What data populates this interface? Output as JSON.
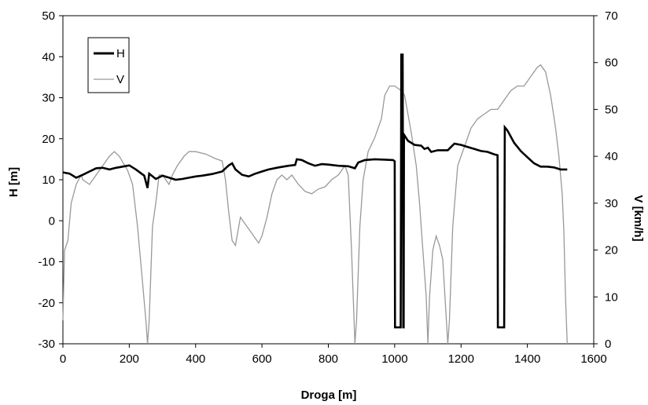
{
  "chart_data": {
    "type": "line",
    "xlabel": "Droga [m]",
    "ylabel_left": "H [m]",
    "ylabel_right": "V [km/h]",
    "xlim": [
      0,
      1600
    ],
    "ylim_left": [
      -30,
      50
    ],
    "ylim_right": [
      0,
      70
    ],
    "x_ticks": [
      "0",
      "200",
      "400",
      "600",
      "800",
      "1000",
      "1200",
      "1400",
      "1600"
    ],
    "y_left_ticks": [
      "-30",
      "-20",
      "-10",
      "0",
      "10",
      "20",
      "30",
      "40",
      "50"
    ],
    "y_right_ticks": [
      "0",
      "10",
      "20",
      "30",
      "40",
      "50",
      "60",
      "70"
    ],
    "grid": false,
    "legend": {
      "placement": "top-left",
      "entries": [
        "H",
        "V"
      ]
    },
    "series": [
      {
        "name": "H",
        "axis": "left",
        "color": "#000000",
        "points": [
          [
            0,
            11.8
          ],
          [
            20,
            11.5
          ],
          [
            40,
            10.5
          ],
          [
            60,
            11.2
          ],
          [
            80,
            12
          ],
          [
            100,
            12.8
          ],
          [
            120,
            12.9
          ],
          [
            140,
            12.5
          ],
          [
            160,
            12.9
          ],
          [
            180,
            13.2
          ],
          [
            200,
            13.5
          ],
          [
            220,
            12.5
          ],
          [
            245,
            11
          ],
          [
            255,
            8
          ],
          [
            260,
            11.5
          ],
          [
            280,
            10.2
          ],
          [
            300,
            11
          ],
          [
            320,
            10.5
          ],
          [
            340,
            10
          ],
          [
            360,
            10.2
          ],
          [
            380,
            10.5
          ],
          [
            400,
            10.8
          ],
          [
            420,
            11
          ],
          [
            450,
            11.4
          ],
          [
            480,
            12
          ],
          [
            500,
            13.5
          ],
          [
            510,
            14
          ],
          [
            520,
            12.5
          ],
          [
            540,
            11.2
          ],
          [
            560,
            10.8
          ],
          [
            580,
            11.5
          ],
          [
            600,
            12
          ],
          [
            620,
            12.5
          ],
          [
            650,
            13
          ],
          [
            680,
            13.4
          ],
          [
            700,
            13.6
          ],
          [
            705,
            15
          ],
          [
            720,
            14.8
          ],
          [
            740,
            14
          ],
          [
            760,
            13.4
          ],
          [
            780,
            13.8
          ],
          [
            800,
            13.7
          ],
          [
            830,
            13.4
          ],
          [
            860,
            13.3
          ],
          [
            880,
            12.8
          ],
          [
            890,
            14.2
          ],
          [
            910,
            14.8
          ],
          [
            940,
            15
          ],
          [
            970,
            14.9
          ],
          [
            995,
            14.8
          ],
          [
            1000,
            14.5
          ],
          [
            1001,
            -26
          ],
          [
            1018,
            -26
          ],
          [
            1020,
            40.5
          ],
          [
            1024,
            40.5
          ],
          [
            1026,
            -26
          ],
          [
            1027,
            -26
          ],
          [
            1028,
            21
          ],
          [
            1040,
            19.5
          ],
          [
            1060,
            18.5
          ],
          [
            1080,
            18.3
          ],
          [
            1090,
            17.5
          ],
          [
            1100,
            17.8
          ],
          [
            1110,
            16.8
          ],
          [
            1130,
            17.2
          ],
          [
            1160,
            17.2
          ],
          [
            1170,
            18
          ],
          [
            1180,
            18.8
          ],
          [
            1200,
            18.5
          ],
          [
            1220,
            18
          ],
          [
            1240,
            17.5
          ],
          [
            1260,
            17
          ],
          [
            1280,
            16.8
          ],
          [
            1300,
            16.2
          ],
          [
            1310,
            16
          ],
          [
            1311,
            -26
          ],
          [
            1330,
            -26
          ],
          [
            1332,
            22.8
          ],
          [
            1340,
            22
          ],
          [
            1360,
            19
          ],
          [
            1380,
            17
          ],
          [
            1400,
            15.5
          ],
          [
            1420,
            14
          ],
          [
            1440,
            13.2
          ],
          [
            1460,
            13.2
          ],
          [
            1480,
            13
          ],
          [
            1500,
            12.5
          ],
          [
            1520,
            12.5
          ]
        ]
      },
      {
        "name": "V",
        "axis": "right",
        "color": "#999999",
        "points": [
          [
            0,
            5
          ],
          [
            5,
            20
          ],
          [
            15,
            22
          ],
          [
            25,
            30
          ],
          [
            40,
            34
          ],
          [
            55,
            36
          ],
          [
            60,
            35
          ],
          [
            80,
            34
          ],
          [
            100,
            36
          ],
          [
            120,
            38
          ],
          [
            140,
            40
          ],
          [
            155,
            41
          ],
          [
            170,
            40
          ],
          [
            195,
            37
          ],
          [
            210,
            34
          ],
          [
            225,
            25
          ],
          [
            240,
            13
          ],
          [
            250,
            5
          ],
          [
            255,
            0
          ],
          [
            260,
            5
          ],
          [
            270,
            25
          ],
          [
            280,
            30
          ],
          [
            290,
            36
          ],
          [
            300,
            36
          ],
          [
            310,
            35
          ],
          [
            320,
            34
          ],
          [
            330,
            36
          ],
          [
            345,
            38
          ],
          [
            365,
            40
          ],
          [
            380,
            41
          ],
          [
            400,
            41
          ],
          [
            430,
            40.5
          ],
          [
            460,
            39.5
          ],
          [
            480,
            39
          ],
          [
            490,
            35
          ],
          [
            500,
            28
          ],
          [
            510,
            22
          ],
          [
            520,
            21
          ],
          [
            535,
            27
          ],
          [
            545,
            26
          ],
          [
            560,
            24.5
          ],
          [
            575,
            23
          ],
          [
            590,
            21.5
          ],
          [
            600,
            23
          ],
          [
            615,
            27
          ],
          [
            630,
            32
          ],
          [
            645,
            35
          ],
          [
            660,
            36
          ],
          [
            675,
            35
          ],
          [
            690,
            36
          ],
          [
            710,
            34
          ],
          [
            730,
            32.5
          ],
          [
            750,
            32
          ],
          [
            770,
            33
          ],
          [
            790,
            33.5
          ],
          [
            810,
            35
          ],
          [
            830,
            36
          ],
          [
            850,
            38
          ],
          [
            860,
            36
          ],
          [
            870,
            20
          ],
          [
            880,
            0
          ],
          [
            885,
            5
          ],
          [
            895,
            25
          ],
          [
            905,
            35
          ],
          [
            920,
            41
          ],
          [
            940,
            44
          ],
          [
            960,
            48
          ],
          [
            970,
            53
          ],
          [
            985,
            55
          ],
          [
            1000,
            55
          ],
          [
            1010,
            54.5
          ],
          [
            1020,
            54
          ],
          [
            1030,
            53
          ],
          [
            1050,
            45
          ],
          [
            1065,
            38
          ],
          [
            1075,
            30
          ],
          [
            1085,
            20
          ],
          [
            1095,
            10
          ],
          [
            1100,
            0
          ],
          [
            1105,
            10
          ],
          [
            1115,
            20
          ],
          [
            1125,
            23
          ],
          [
            1135,
            21
          ],
          [
            1145,
            18
          ],
          [
            1160,
            0
          ],
          [
            1165,
            5
          ],
          [
            1175,
            25
          ],
          [
            1190,
            38
          ],
          [
            1210,
            42
          ],
          [
            1230,
            46
          ],
          [
            1250,
            48
          ],
          [
            1270,
            49
          ],
          [
            1290,
            50
          ],
          [
            1310,
            50
          ],
          [
            1330,
            52
          ],
          [
            1350,
            54
          ],
          [
            1370,
            55
          ],
          [
            1390,
            55
          ],
          [
            1410,
            57
          ],
          [
            1430,
            59
          ],
          [
            1440,
            59.5
          ],
          [
            1455,
            58
          ],
          [
            1470,
            53
          ],
          [
            1485,
            46
          ],
          [
            1495,
            40
          ],
          [
            1505,
            32
          ],
          [
            1510,
            24
          ],
          [
            1515,
            10
          ],
          [
            1520,
            0
          ]
        ]
      }
    ]
  }
}
